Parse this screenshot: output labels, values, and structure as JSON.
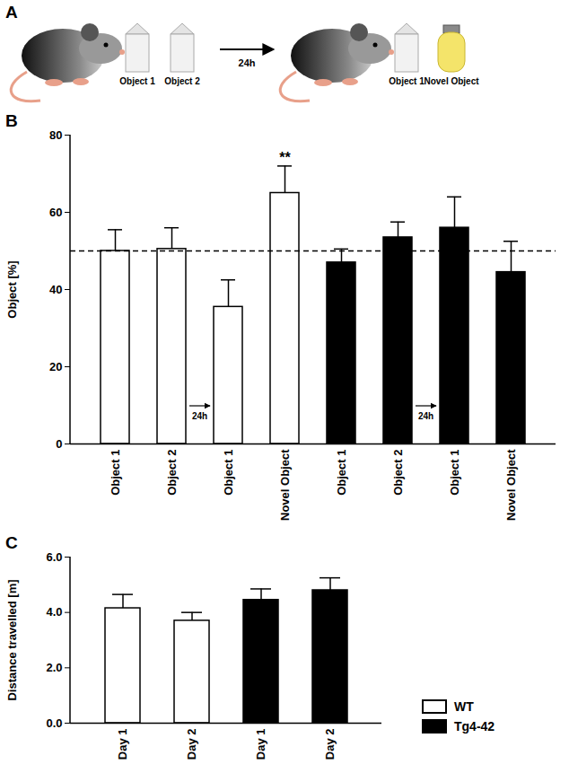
{
  "diagram": {
    "title": "A",
    "objects_before": [
      "Object 1",
      "Object 2"
    ],
    "delay": "24h",
    "objects_after": [
      "Object 1",
      "Novel Object"
    ]
  },
  "chart_data": [
    {
      "type": "bar",
      "title": "B",
      "y_label": "Object [%]",
      "categories": [
        "Object 1",
        "Object 2",
        "Object 1",
        "Novel Object",
        "Object 1",
        "Object 2",
        "Object 1",
        "Novel Object"
      ],
      "series": [
        {
          "name": "WT",
          "color": "#ffffff",
          "values": [
            50,
            50.5,
            35.5,
            65,
            null,
            null,
            null,
            null
          ],
          "errors": [
            5.5,
            5.5,
            7,
            7,
            null,
            null,
            null,
            null
          ]
        },
        {
          "name": "Tg4-42",
          "color": "#000000",
          "values": [
            null,
            null,
            null,
            null,
            47,
            53.5,
            56,
            44.5
          ],
          "errors": [
            null,
            null,
            null,
            null,
            3.5,
            4,
            8,
            8
          ]
        }
      ],
      "ylim": [
        0,
        80
      ],
      "yticks": [
        0,
        20,
        40,
        60,
        80
      ],
      "reference": 50,
      "annotations": [
        {
          "text": "**",
          "category": 3
        },
        {
          "text": "24h",
          "after": 1
        },
        {
          "text": "24h",
          "after": 5
        }
      ]
    },
    {
      "type": "bar",
      "title": "C",
      "y_label": "Distance travelled [m]",
      "categories": [
        "Day 1",
        "Day 2",
        "Day 1",
        "Day 2"
      ],
      "series": [
        {
          "name": "WT",
          "color": "#ffffff",
          "values": [
            4.15,
            3.7,
            null,
            null
          ],
          "errors": [
            0.5,
            0.3,
            null,
            null
          ]
        },
        {
          "name": "Tg4-42",
          "color": "#000000",
          "values": [
            null,
            null,
            4.45,
            4.8
          ],
          "errors": [
            null,
            null,
            0.4,
            0.45
          ]
        }
      ],
      "ylim": [
        0,
        6
      ],
      "yticks": [
        0,
        2,
        4,
        6
      ],
      "legend": "right"
    }
  ]
}
